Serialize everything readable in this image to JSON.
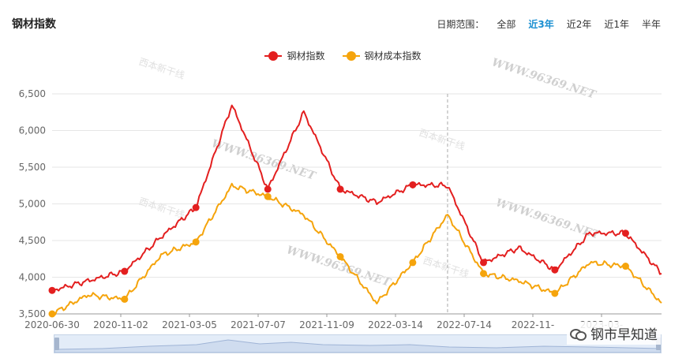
{
  "page": {
    "title": "钢材指数",
    "range_label": "日期范围：",
    "range_options": [
      "全部",
      "近3年",
      "近2年",
      "近1年",
      "半年"
    ],
    "range_active": "近3年",
    "badge_text": "钢市早知道",
    "watermark_text": "WWW.96369.NET",
    "watermark_logo_text": "西本新干线"
  },
  "colors": {
    "steel": "#e31f1f",
    "cost": "#f5a40c",
    "accent": "#1a8fd1"
  },
  "chart_data": {
    "type": "line",
    "x": [
      "2020-06-30",
      "2020-08-31",
      "2020-11-02",
      "2021-01-04",
      "2021-03-05",
      "2021-05-06",
      "2021-07-07",
      "2021-09-07",
      "2021-11-09",
      "2022-01-11",
      "2022-03-14",
      "2022-05-13",
      "2022-07-14",
      "2022-09-13",
      "2022-11-14",
      "2023-01-13",
      "2023-03-16",
      "2023-05-17"
    ],
    "x_tick_labels": [
      "2020-06-30",
      "2020-11-02",
      "2021-03-05",
      "2021-07-07",
      "2021-11-09",
      "2022-03-14",
      "2022-07-14",
      "2022-11-",
      "2023-03-"
    ],
    "ylim": [
      3500,
      6500
    ],
    "y_ticks": [
      "3,500",
      "4,000",
      "4,500",
      "5,000",
      "5,500",
      "6,000",
      "6,500"
    ],
    "series": [
      {
        "name": "钢材指数",
        "values": [
          3820,
          3950,
          4080,
          4550,
          4950,
          6350,
          5200,
          6250,
          5200,
          5020,
          5260,
          5250,
          4200,
          4400,
          4100,
          4600,
          4600,
          4050
        ]
      },
      {
        "name": "钢材成本指数",
        "values": [
          3500,
          3760,
          3700,
          4300,
          4480,
          5250,
          5100,
          4850,
          4280,
          3650,
          4200,
          4850,
          4050,
          3950,
          3780,
          4200,
          4150,
          3650
        ]
      }
    ],
    "tooltip_x": "2022-05-13",
    "grid": true
  }
}
